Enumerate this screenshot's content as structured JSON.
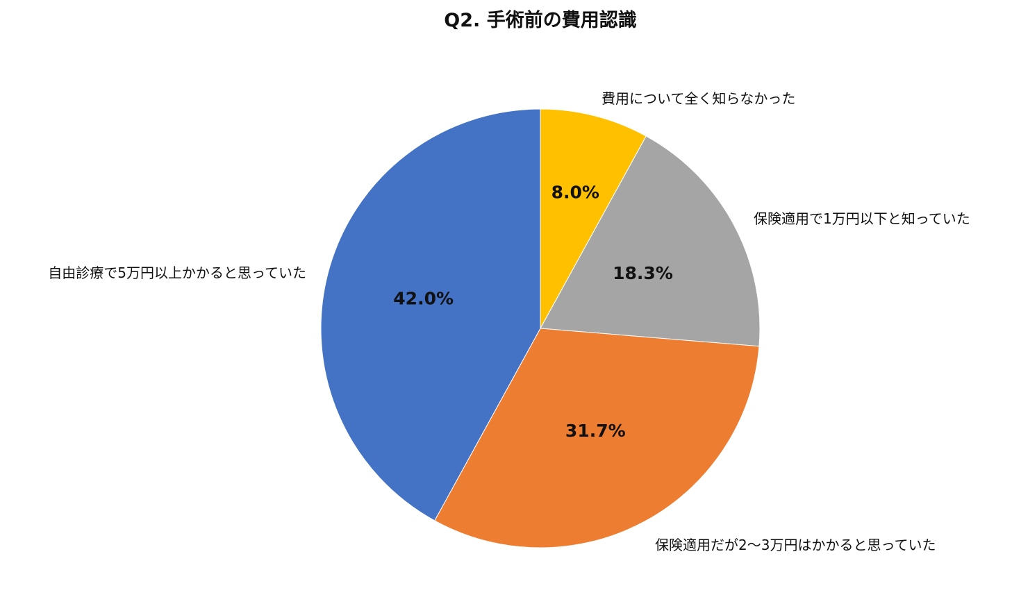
{
  "chart_data": {
    "type": "pie",
    "title": "Q2. 手術前の費用認識",
    "start_angle": 0,
    "direction": "clockwise",
    "legend": "none",
    "slices": [
      {
        "label": "費用について全く知らなかった",
        "value": 8.0,
        "value_label": "8.0%",
        "color": "#FFC000"
      },
      {
        "label": "保険適用で1万円以下と知っていた",
        "value": 18.3,
        "value_label": "18.3%",
        "color": "#A5A5A5"
      },
      {
        "label": "保険適用だが2〜3万円はかかると思っていた",
        "value": 31.7,
        "value_label": "31.7%",
        "color": "#ED7D31"
      },
      {
        "label": "自由診療で5万円以上かかると思っていた",
        "value": 42.0,
        "value_label": "42.0%",
        "color": "#4472C4"
      }
    ]
  }
}
